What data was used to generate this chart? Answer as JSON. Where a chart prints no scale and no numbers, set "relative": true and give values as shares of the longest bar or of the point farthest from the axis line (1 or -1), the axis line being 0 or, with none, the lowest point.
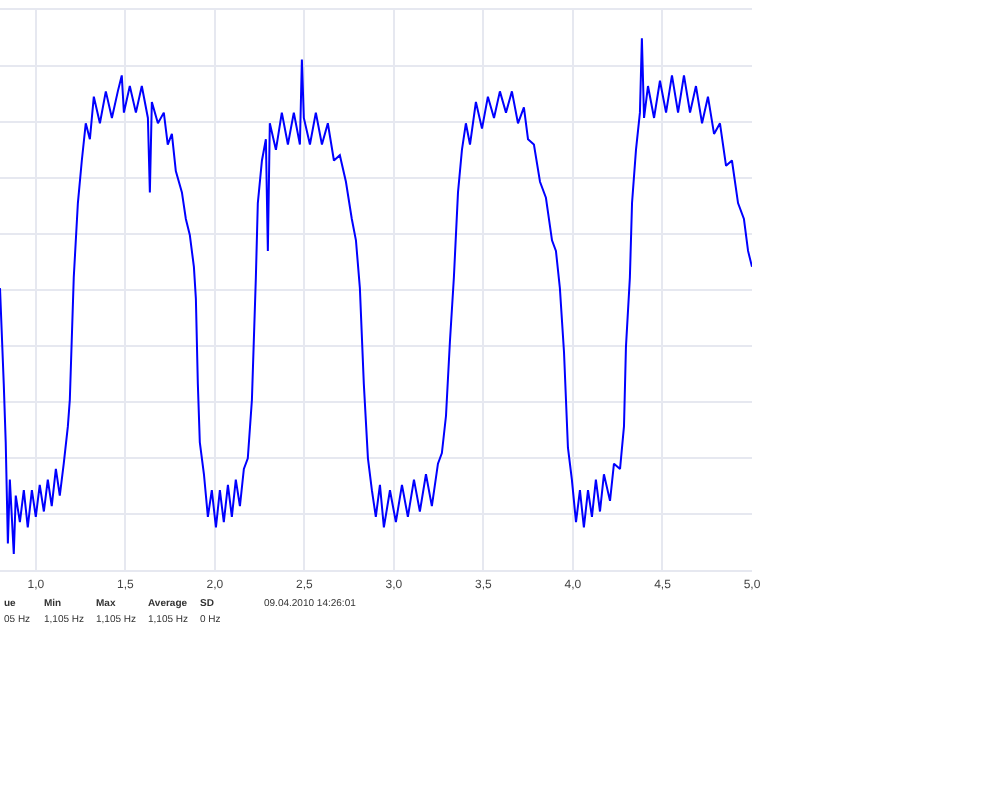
{
  "chart_data": {
    "type": "line",
    "relative": true,
    "x": [
      0.8,
      0.821,
      0.832,
      0.844,
      0.855,
      0.877,
      0.888,
      0.911,
      0.933,
      0.955,
      0.978,
      1.0,
      1.022,
      1.045,
      1.067,
      1.089,
      1.112,
      1.134,
      1.156,
      1.179,
      1.19,
      1.212,
      1.235,
      1.257,
      1.279,
      1.302,
      1.324,
      1.358,
      1.391,
      1.425,
      1.458,
      1.48,
      1.492,
      1.525,
      1.559,
      1.592,
      1.626,
      1.637,
      1.648,
      1.682,
      1.715,
      1.737,
      1.76,
      1.782,
      1.816,
      1.838,
      1.86,
      1.883,
      1.894,
      1.905,
      1.916,
      1.939,
      1.961,
      1.983,
      2.006,
      2.028,
      2.05,
      2.073,
      2.095,
      2.117,
      2.14,
      2.162,
      2.184,
      2.207,
      2.229,
      2.24,
      2.263,
      2.285,
      2.296,
      2.307,
      2.341,
      2.374,
      2.408,
      2.441,
      2.475,
      2.486,
      2.497,
      2.531,
      2.564,
      2.598,
      2.631,
      2.665,
      2.698,
      2.732,
      2.765,
      2.788,
      2.81,
      2.832,
      2.855,
      2.877,
      2.899,
      2.922,
      2.944,
      2.978,
      3.011,
      3.045,
      3.078,
      3.112,
      3.145,
      3.179,
      3.212,
      3.246,
      3.268,
      3.291,
      3.313,
      3.335,
      3.358,
      3.38,
      3.402,
      3.425,
      3.458,
      3.492,
      3.525,
      3.559,
      3.592,
      3.626,
      3.659,
      3.693,
      3.726,
      3.749,
      3.782,
      3.816,
      3.849,
      3.883,
      3.905,
      3.927,
      3.95,
      3.972,
      3.994,
      4.017,
      4.039,
      4.061,
      4.084,
      4.106,
      4.128,
      4.151,
      4.173,
      4.207,
      4.229,
      4.263,
      4.285,
      4.296,
      4.318,
      4.33,
      4.352,
      4.374,
      4.385,
      4.397,
      4.419,
      4.453,
      4.486,
      4.52,
      4.553,
      4.587,
      4.62,
      4.654,
      4.687,
      4.721,
      4.754,
      4.788,
      4.821,
      4.855,
      4.888,
      4.922,
      4.955,
      4.978,
      5.0
    ],
    "series": [
      {
        "color": "#0000ff",
        "values": [
          0.53,
          0.35,
          0.24,
          0.05,
          0.17,
          0.03,
          0.14,
          0.09,
          0.15,
          0.08,
          0.15,
          0.1,
          0.16,
          0.11,
          0.17,
          0.12,
          0.19,
          0.14,
          0.2,
          0.27,
          0.32,
          0.55,
          0.69,
          0.77,
          0.84,
          0.81,
          0.89,
          0.84,
          0.9,
          0.85,
          0.9,
          0.93,
          0.86,
          0.91,
          0.86,
          0.91,
          0.85,
          0.71,
          0.88,
          0.84,
          0.86,
          0.8,
          0.82,
          0.75,
          0.71,
          0.66,
          0.63,
          0.57,
          0.51,
          0.35,
          0.24,
          0.18,
          0.1,
          0.15,
          0.08,
          0.15,
          0.09,
          0.16,
          0.1,
          0.17,
          0.12,
          0.19,
          0.21,
          0.32,
          0.55,
          0.69,
          0.77,
          0.81,
          0.6,
          0.84,
          0.79,
          0.86,
          0.8,
          0.86,
          0.8,
          0.96,
          0.85,
          0.8,
          0.86,
          0.8,
          0.84,
          0.77,
          0.78,
          0.73,
          0.66,
          0.62,
          0.53,
          0.35,
          0.21,
          0.15,
          0.1,
          0.16,
          0.08,
          0.15,
          0.09,
          0.16,
          0.1,
          0.17,
          0.11,
          0.18,
          0.12,
          0.2,
          0.22,
          0.29,
          0.43,
          0.55,
          0.71,
          0.79,
          0.84,
          0.8,
          0.88,
          0.83,
          0.89,
          0.85,
          0.9,
          0.86,
          0.9,
          0.84,
          0.87,
          0.81,
          0.8,
          0.73,
          0.7,
          0.62,
          0.6,
          0.53,
          0.41,
          0.23,
          0.17,
          0.09,
          0.15,
          0.08,
          0.15,
          0.1,
          0.17,
          0.11,
          0.18,
          0.13,
          0.2,
          0.19,
          0.27,
          0.42,
          0.55,
          0.69,
          0.79,
          0.86,
          1.0,
          0.85,
          0.91,
          0.85,
          0.92,
          0.86,
          0.93,
          0.86,
          0.93,
          0.86,
          0.91,
          0.84,
          0.89,
          0.82,
          0.84,
          0.76,
          0.77,
          0.69,
          0.66,
          0.6,
          0.57
        ]
      }
    ],
    "xlim": [
      0.8,
      5.0
    ],
    "xticks": [
      {
        "value": 1.0,
        "label": "1,0"
      },
      {
        "value": 1.5,
        "label": "1,5"
      },
      {
        "value": 2.0,
        "label": "2,0"
      },
      {
        "value": 2.5,
        "label": "2,5"
      },
      {
        "value": 3.0,
        "label": "3,0"
      },
      {
        "value": 3.5,
        "label": "3,5"
      },
      {
        "value": 4.0,
        "label": "4,0"
      },
      {
        "value": 4.5,
        "label": "4,5"
      },
      {
        "value": 5.0,
        "label": "5,0"
      }
    ],
    "grid": true,
    "annotations": [
      "ue",
      "Min",
      "Max",
      "Average",
      "SD",
      "05 Hz",
      "1,105 Hz",
      "1,105 Hz",
      "1,105 Hz",
      "0 Hz",
      "09.04.2010 14:26:01"
    ]
  }
}
